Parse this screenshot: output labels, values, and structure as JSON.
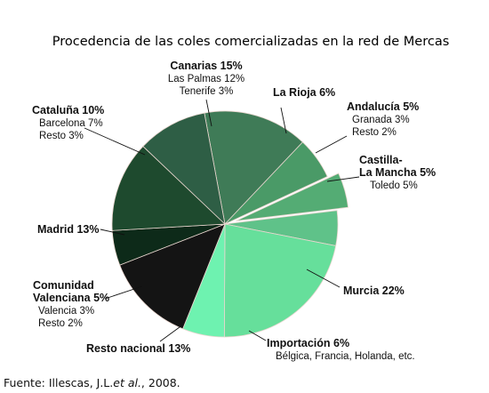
{
  "chart_data": {
    "type": "pie",
    "title": "Procedencia de las coles comercializadas en la red de Mercas",
    "unit": "%",
    "slices": [
      {
        "name": "Canarias",
        "value": 15,
        "label": "Canarias 15%",
        "detail": [
          "Las Palmas 12%",
          "Tenerife 3%"
        ],
        "color": "#3f7b57"
      },
      {
        "name": "La Rioja",
        "value": 6,
        "label": "La Rioja 6%",
        "detail": [],
        "color": "#4a9a67"
      },
      {
        "name": "Andalucía",
        "value": 5,
        "label": "Andalucía 5%",
        "detail": [
          "Granada 3%",
          "Resto 2%"
        ],
        "color": "#54ac74",
        "exploded": true
      },
      {
        "name": "Castilla-La Mancha",
        "value": 5,
        "label": "Castilla-\nLa Mancha 5%",
        "detail": [
          "Toledo 5%"
        ],
        "color": "#5fc289"
      },
      {
        "name": "Murcia",
        "value": 22,
        "label": "Murcia 22%",
        "detail": [],
        "color": "#66df9b"
      },
      {
        "name": "Importación",
        "value": 6,
        "label": "Importación 6%",
        "detail": [
          "Bélgica, Francia, Holanda, etc."
        ],
        "color": "#6ef2b0"
      },
      {
        "name": "Resto nacional",
        "value": 13,
        "label": "Resto nacional 13%",
        "detail": [],
        "color": "#141414"
      },
      {
        "name": "Comunidad Valenciana",
        "value": 5,
        "label": "Comunidad\nValenciana 5%",
        "detail": [
          "Valencia 3%",
          "Resto 2%"
        ],
        "color": "#0d2a19"
      },
      {
        "name": "Madrid",
        "value": 13,
        "label": "Madrid 13%",
        "detail": [],
        "color": "#1e4a2e"
      },
      {
        "name": "Cataluña",
        "value": 10,
        "label": "Cataluña 10%",
        "detail": [
          "Barcelona 7%",
          "Resto 3%"
        ],
        "color": "#2e5e45"
      }
    ]
  },
  "source": {
    "prefix": "Fuente: Illescas, J.L.",
    "italic": "et al.",
    "suffix": ", 2008."
  }
}
